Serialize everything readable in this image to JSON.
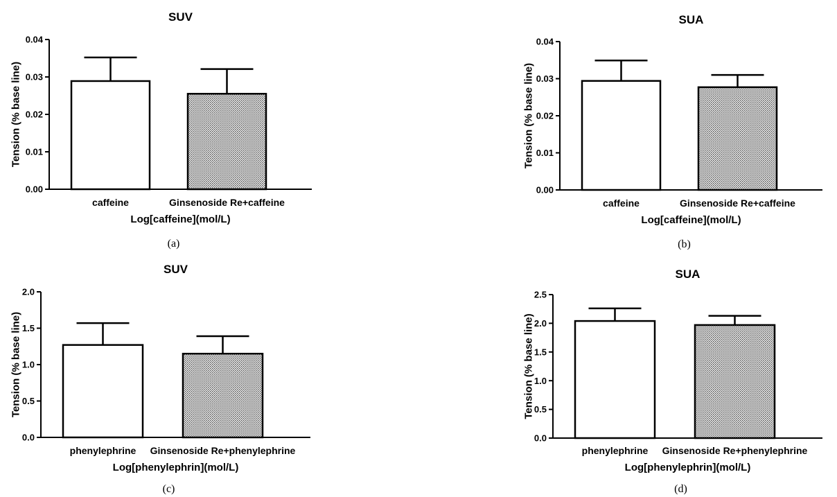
{
  "chart_data": [
    {
      "type": "bar",
      "title": "SUV",
      "panel_label": "(a)",
      "xlabel": "Log[caffeine](mol/L)",
      "ylabel": "Tension (% base line)",
      "categories": [
        "caffeine",
        "Ginsenoside Re+caffeine"
      ],
      "values": [
        0.0289,
        0.0255
      ],
      "errors": [
        0.0063,
        0.0066
      ],
      "ylim": [
        0,
        0.04
      ],
      "yticks": [
        "0.00",
        "0.01",
        "0.02",
        "0.03",
        "0.04"
      ],
      "fills": [
        "white",
        "stipple"
      ],
      "grid": false
    },
    {
      "type": "bar",
      "title": "SUA",
      "panel_label": "(b)",
      "xlabel": "Log[caffeine](mol/L)",
      "ylabel": "Tension (% base line)",
      "categories": [
        "caffeine",
        "Ginsenoside Re+caffeine"
      ],
      "values": [
        0.0294,
        0.0277
      ],
      "errors": [
        0.0055,
        0.0033
      ],
      "ylim": [
        0,
        0.04
      ],
      "yticks": [
        "0.00",
        "0.01",
        "0.02",
        "0.03",
        "0.04"
      ],
      "fills": [
        "white",
        "stipple"
      ],
      "grid": false
    },
    {
      "type": "bar",
      "title": "SUV",
      "panel_label": "(c)",
      "xlabel": "Log[phenylephrin](mol/L)",
      "ylabel": "Tension (% base line)",
      "categories": [
        "phenylephrine",
        "Ginsenoside Re+phenylephrine"
      ],
      "values": [
        1.27,
        1.15
      ],
      "errors": [
        0.3,
        0.24
      ],
      "ylim": [
        0,
        2.0
      ],
      "yticks": [
        "0.0",
        "0.5",
        "1.0",
        "1.5",
        "2.0"
      ],
      "fills": [
        "white",
        "stipple"
      ],
      "grid": false
    },
    {
      "type": "bar",
      "title": "SUA",
      "panel_label": "(d)",
      "xlabel": "Log[phenylephrin](mol/L)",
      "ylabel": "Tension (% base line)",
      "categories": [
        "phenylephrine",
        "Ginsenoside Re+phenylephrine"
      ],
      "values": [
        2.04,
        1.97
      ],
      "errors": [
        0.22,
        0.16
      ],
      "ylim": [
        0,
        2.5
      ],
      "yticks": [
        "0.0",
        "0.5",
        "1.0",
        "1.5",
        "2.0",
        "2.5"
      ],
      "fills": [
        "white",
        "stipple"
      ],
      "grid": false
    }
  ]
}
